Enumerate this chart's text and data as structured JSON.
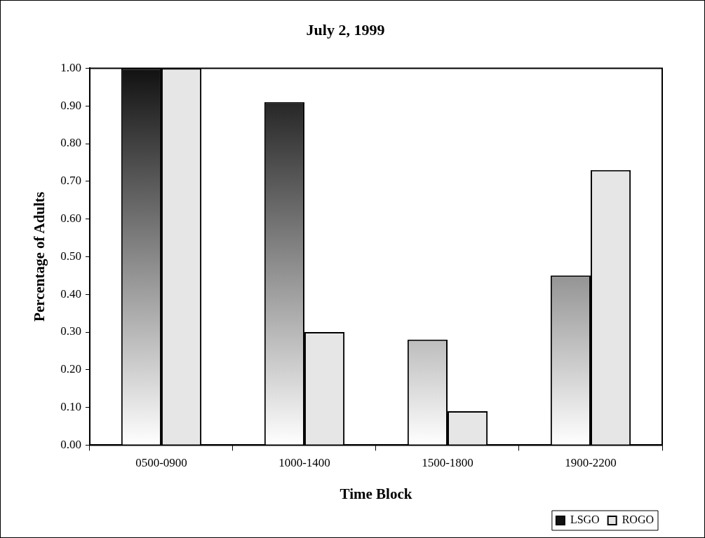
{
  "chart_data": {
    "type": "bar",
    "title": "July 2, 1999",
    "xlabel": "Time Block",
    "ylabel": "Percentage of Adults",
    "categories": [
      "0500-0900",
      "1000-1400",
      "1500-1800",
      "1900-2200"
    ],
    "series": [
      {
        "name": "LSGO",
        "color": "#111111",
        "values": [
          1.0,
          0.91,
          0.28,
          0.45
        ]
      },
      {
        "name": "ROGO",
        "color": "#e6e6e6",
        "values": [
          1.0,
          0.3,
          0.09,
          0.73
        ]
      }
    ],
    "ylim": [
      0,
      1
    ],
    "yticks": [
      {
        "value": 0,
        "label": "0.00"
      },
      {
        "value": 0.1,
        "label": "0.10"
      },
      {
        "value": 0.2,
        "label": "0.20"
      },
      {
        "value": 0.3,
        "label": "0.30"
      },
      {
        "value": 0.4,
        "label": "0.40"
      },
      {
        "value": 0.5,
        "label": "0.50"
      },
      {
        "value": 0.6,
        "label": "0.60"
      },
      {
        "value": 0.7,
        "label": "0.70"
      },
      {
        "value": 0.8,
        "label": "0.80"
      },
      {
        "value": 0.9,
        "label": "0.90"
      },
      {
        "value": 1,
        "label": "1.00"
      }
    ],
    "grid": false,
    "legend": "bottom right"
  }
}
